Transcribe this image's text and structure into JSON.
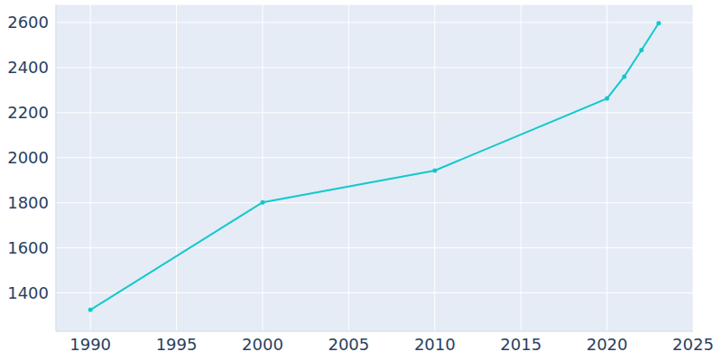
{
  "chart_data": {
    "type": "line",
    "x": [
      1990,
      2000,
      2010,
      2020,
      2021,
      2022,
      2023
    ],
    "values": [
      1325,
      1802,
      1943,
      2263,
      2360,
      2478,
      2597
    ],
    "color": "#14c8cc",
    "marker": "circle",
    "xlim": [
      1988,
      2025
    ],
    "xticks": [
      1990,
      1995,
      2000,
      2005,
      2010,
      2015,
      2020,
      2025
    ],
    "ylim": [
      1230,
      2680
    ],
    "yticks": [
      1400,
      1600,
      1800,
      2000,
      2200,
      2400,
      2600
    ],
    "grid": true
  }
}
